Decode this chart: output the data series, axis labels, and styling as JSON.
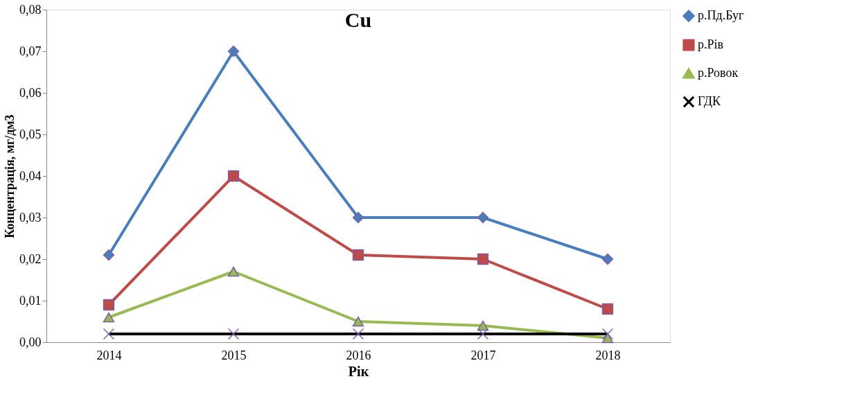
{
  "chart_data": {
    "type": "line",
    "title": "Cu",
    "xlabel": "Рік",
    "ylabel": "Концентрація, мг/дм3",
    "categories": [
      "2014",
      "2015",
      "2016",
      "2017",
      "2018"
    ],
    "series": [
      {
        "name": "р.Пд.Буг",
        "color": "#4a7ebb",
        "marker": "diamond",
        "values": [
          0.021,
          0.07,
          0.03,
          0.03,
          0.02
        ]
      },
      {
        "name": "р.Рів",
        "color": "#be4b48",
        "marker": "square",
        "values": [
          0.009,
          0.04,
          0.021,
          0.02,
          0.008
        ]
      },
      {
        "name": "р.Ровок",
        "color": "#98b954",
        "marker": "triangle",
        "values": [
          0.006,
          0.017,
          0.005,
          0.004,
          0.001
        ]
      },
      {
        "name": "ГДК",
        "color": "#000000",
        "marker": "cross",
        "values": [
          0.002,
          0.002,
          0.002,
          0.002,
          0.002
        ]
      }
    ],
    "ylim": [
      0,
      0.08
    ],
    "yticks": [
      {
        "value": 0,
        "label": "0,00"
      },
      {
        "value": 0.01,
        "label": "0,01"
      },
      {
        "value": 0.02,
        "label": "0,02"
      },
      {
        "value": 0.03,
        "label": "0,03"
      },
      {
        "value": 0.04,
        "label": "0,04"
      },
      {
        "value": 0.05,
        "label": "0,05"
      },
      {
        "value": 0.06,
        "label": "0,06"
      },
      {
        "value": 0.07,
        "label": "0,07"
      },
      {
        "value": 0.08,
        "label": "0,08"
      }
    ],
    "grid": false,
    "legend": "right",
    "line_style": "solid"
  }
}
